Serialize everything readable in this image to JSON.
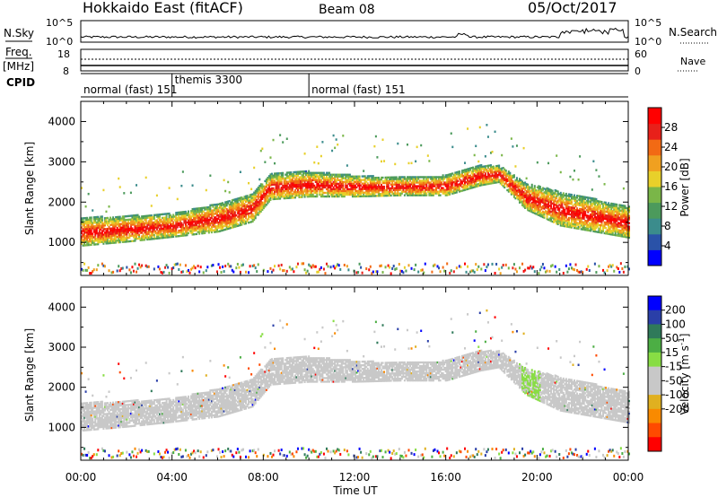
{
  "header": {
    "title": "Hokkaido East (fitACF)",
    "beam": "Beam 08",
    "date": "05/Oct/2017"
  },
  "noise_panel": {
    "left_label": "N.Sky",
    "right_label": "N.Search",
    "ticks": [
      "10^5",
      "10^0"
    ]
  },
  "freq_panel": {
    "left_label_1": "Freq.",
    "left_label_2": "[MHz]",
    "left_ticks": [
      "18",
      "8"
    ],
    "right_label": "Nave",
    "right_ticks": [
      "60",
      "0"
    ]
  },
  "cpid_panel": {
    "label": "CPID",
    "segments": [
      {
        "start_hour": 0,
        "end_hour": 4,
        "label": "normal (fast) 151"
      },
      {
        "start_hour": 4,
        "end_hour": 10,
        "label": "themis 3300"
      },
      {
        "start_hour": 10,
        "end_hour": 24,
        "label": "normal (fast) 151"
      }
    ]
  },
  "x_axis": {
    "label": "Time UT",
    "ticks": [
      "00:00",
      "04:00",
      "08:00",
      "12:00",
      "16:00",
      "20:00",
      "00:00"
    ]
  },
  "colors": {
    "power": [
      "#0000ff",
      "#2a52a8",
      "#3b8c8c",
      "#4c9a5c",
      "#7ab648",
      "#e8d02a",
      "#f0a020",
      "#f26a14",
      "#e8201a",
      "#ff0000"
    ],
    "velocity": [
      "#ff0000",
      "#ff4a00",
      "#f98a00",
      "#e0b020",
      "#c8c8c8",
      "#c8c8c8",
      "#88dd44",
      "#4cae44",
      "#2f7a5a",
      "#2a3fa8",
      "#0000ff"
    ],
    "ground_scatter": "#c8c8c8"
  },
  "chart_data": [
    {
      "type": "heatmap",
      "name": "power",
      "ylabel": "Slant Range [km]",
      "xlim_hours": [
        0,
        24
      ],
      "ylim": [
        180,
        4500
      ],
      "y_ticks": [
        1000,
        2000,
        3000,
        4000
      ],
      "colorbar": {
        "label": "Power [dB]",
        "range": [
          0,
          32
        ],
        "ticks": [
          4,
          8,
          12,
          16,
          20,
          24,
          28
        ]
      },
      "features": [
        {
          "description": "main scatter band",
          "t": [
            0,
            2,
            4,
            6,
            7.5,
            8.3,
            10,
            12,
            14,
            16,
            17.5,
            18.3,
            19.5,
            21,
            23,
            24
          ],
          "range_low": [
            900,
            1000,
            1120,
            1250,
            1500,
            2050,
            2120,
            2120,
            2150,
            2150,
            2400,
            2480,
            1800,
            1400,
            1200,
            1100
          ],
          "range_high": [
            1600,
            1650,
            1700,
            1950,
            2200,
            2700,
            2750,
            2650,
            2600,
            2650,
            2900,
            2900,
            2450,
            2250,
            2000,
            1900
          ]
        }
      ]
    },
    {
      "type": "heatmap",
      "name": "velocity",
      "ylabel": "Slant Range [km]",
      "xlim_hours": [
        0,
        24
      ],
      "ylim": [
        180,
        4500
      ],
      "y_ticks": [
        1000,
        2000,
        3000,
        4000
      ],
      "colorbar": {
        "label": "Velocity [m s^-1]",
        "range": [
          -250,
          250
        ],
        "ticks": [
          200,
          100,
          50,
          15,
          -15,
          -50,
          -100,
          -200
        ]
      }
    }
  ]
}
